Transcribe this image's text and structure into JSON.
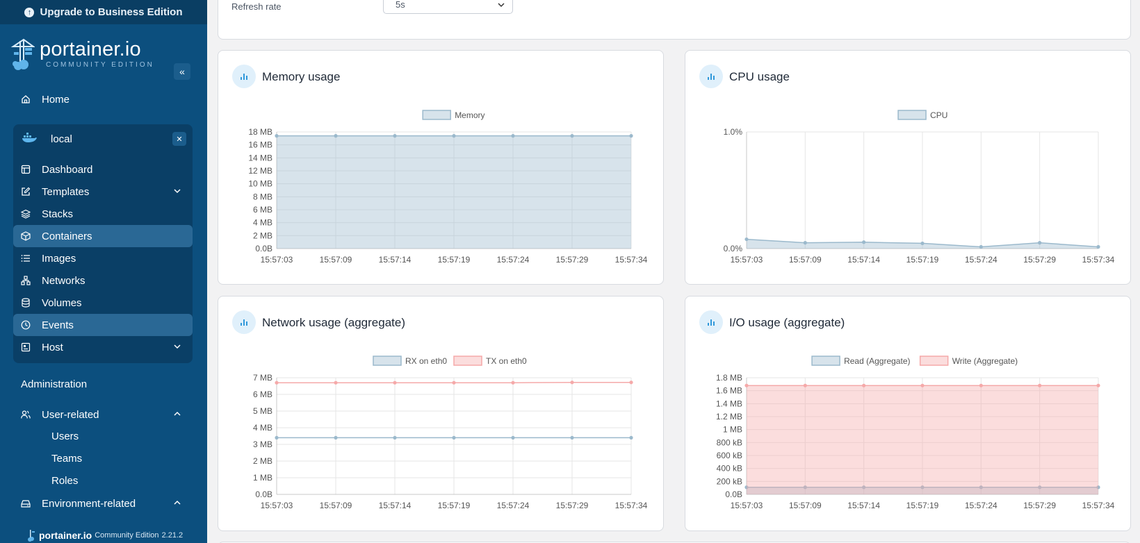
{
  "sidebar": {
    "upgrade_label": "Upgrade to Business Edition",
    "brand": {
      "name": "portainer.io",
      "edition": "COMMUNITY EDITION"
    },
    "home": "Home",
    "environment": {
      "name": "local"
    },
    "env_items": [
      "Dashboard",
      "Templates",
      "Stacks",
      "Containers",
      "Images",
      "Networks",
      "Volumes",
      "Events",
      "Host"
    ],
    "administration": "Administration",
    "user_related": "User-related",
    "user_items": [
      "Users",
      "Teams",
      "Roles"
    ],
    "environment_related": "Environment-related",
    "footer": {
      "brand": "portainer.io",
      "edition": "Community Edition",
      "version": "2.21.2"
    }
  },
  "refresh": {
    "label": "Refresh rate",
    "value": "5s"
  },
  "charts_titles": {
    "memory": "Memory usage",
    "cpu": "CPU usage",
    "network": "Network usage (aggregate)",
    "io": "I/O usage (aggregate)"
  },
  "chart_data": [
    {
      "type": "area",
      "title": "Memory usage",
      "x": [
        "15:57:03",
        "15:57:09",
        "15:57:14",
        "15:57:19",
        "15:57:24",
        "15:57:29",
        "15:57:34"
      ],
      "yticks": [
        "0.0B",
        "2 MB",
        "4 MB",
        "6 MB",
        "8 MB",
        "10 MB",
        "12 MB",
        "14 MB",
        "16 MB",
        "18 MB"
      ],
      "ylim": [
        0,
        18
      ],
      "yunit": "MB",
      "series": [
        {
          "name": "Memory",
          "values": [
            17.4,
            17.4,
            17.4,
            17.4,
            17.4,
            17.4,
            17.4
          ],
          "color": "#9bb9cc"
        }
      ],
      "legend": "top"
    },
    {
      "type": "area",
      "title": "CPU usage",
      "x": [
        "15:57:03",
        "15:57:09",
        "15:57:14",
        "15:57:19",
        "15:57:24",
        "15:57:29",
        "15:57:34"
      ],
      "yticks": [
        "0.0%",
        "1.0%"
      ],
      "ylim": [
        0,
        1
      ],
      "yunit": "%",
      "series": [
        {
          "name": "CPU",
          "values": [
            0.08,
            0.05,
            0.055,
            0.045,
            0.015,
            0.05,
            0.015
          ],
          "color": "#9bb9cc"
        }
      ],
      "legend": "top"
    },
    {
      "type": "line",
      "title": "Network usage (aggregate)",
      "x": [
        "15:57:03",
        "15:57:09",
        "15:57:14",
        "15:57:19",
        "15:57:24",
        "15:57:29",
        "15:57:34"
      ],
      "yticks": [
        "0.0B",
        "1 MB",
        "2 MB",
        "3 MB",
        "4 MB",
        "5 MB",
        "6 MB",
        "7 MB"
      ],
      "ylim": [
        0,
        7
      ],
      "yunit": "MB",
      "series": [
        {
          "name": "RX on eth0",
          "values": [
            3.4,
            3.4,
            3.4,
            3.4,
            3.4,
            3.4,
            3.4
          ],
          "color": "#9bb9cc"
        },
        {
          "name": "TX on eth0",
          "values": [
            6.7,
            6.7,
            6.7,
            6.7,
            6.7,
            6.72,
            6.72
          ],
          "color": "#f5a9a9"
        }
      ],
      "legend": "top"
    },
    {
      "type": "area",
      "title": "I/O usage (aggregate)",
      "x": [
        "15:57:03",
        "15:57:09",
        "15:57:14",
        "15:57:19",
        "15:57:24",
        "15:57:29",
        "15:57:34"
      ],
      "yticks": [
        "0.0B",
        "200 kB",
        "400 kB",
        "600 kB",
        "800 kB",
        "1 MB",
        "1.2 MB",
        "1.4 MB",
        "1.6 MB",
        "1.8 MB"
      ],
      "ylim": [
        0,
        1.8
      ],
      "yunit": "MB",
      "series": [
        {
          "name": "Read (Aggregate)",
          "values": [
            0.11,
            0.11,
            0.11,
            0.11,
            0.11,
            0.11,
            0.11
          ],
          "color": "#9bb9cc"
        },
        {
          "name": "Write (Aggregate)",
          "values": [
            1.68,
            1.68,
            1.68,
            1.68,
            1.68,
            1.68,
            1.68
          ],
          "color": "#f5a9a9"
        }
      ],
      "legend": "top"
    }
  ]
}
